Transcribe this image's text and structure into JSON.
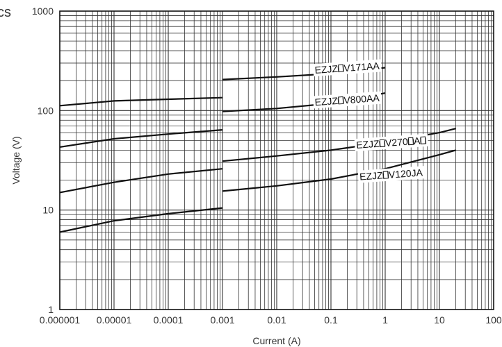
{
  "header": {
    "clipped_text": "cs"
  },
  "chart_data": {
    "type": "line",
    "title": "",
    "xlabel": "Current (A)",
    "ylabel": "Voltage (V)",
    "xscale": "log",
    "yscale": "log",
    "xlim": [
      1e-06,
      100
    ],
    "ylim": [
      1,
      1000
    ],
    "grid": true,
    "x_ticks": [
      "0.000001",
      "0.00001",
      "0.0001",
      "0.001",
      "0.01",
      "0.1",
      "1",
      "10",
      "100"
    ],
    "y_ticks": [
      "1",
      "10",
      "100",
      "1000"
    ],
    "series": [
      {
        "name": "EZJZ□V171AA",
        "label_boxes": [
          4
        ],
        "label_at": {
          "x": 0.2,
          "y": 248
        },
        "points": [
          [
            0.001,
            205
          ],
          [
            0.01,
            218
          ],
          [
            0.1,
            235
          ],
          [
            1,
            270
          ]
        ]
      },
      {
        "name": "EZJZ□V800AA",
        "label_boxes": [
          4
        ],
        "label_at": {
          "x": 0.2,
          "y": 118
        },
        "points": [
          [
            1e-06,
            112
          ],
          [
            1e-05,
            125
          ],
          [
            0.0001,
            130
          ],
          [
            0.001,
            135
          ],
          [
            0.001,
            98
          ],
          [
            0.01,
            105
          ],
          [
            0.1,
            118
          ],
          [
            1,
            150
          ]
        ]
      },
      {
        "name": "EZJZ□V270□A□",
        "label_boxes": [
          4,
          9,
          11
        ],
        "label_at": {
          "x": 1.3,
          "y": 44
        },
        "points": [
          [
            1e-06,
            43
          ],
          [
            1e-05,
            52
          ],
          [
            0.0001,
            58
          ],
          [
            0.001,
            64
          ],
          [
            0.001,
            31
          ],
          [
            0.01,
            35
          ],
          [
            0.1,
            40
          ],
          [
            1,
            48
          ],
          [
            10,
            60
          ],
          [
            20,
            66
          ]
        ]
      },
      {
        "name": "EZJZ□V120JA",
        "label_boxes": [
          4
        ],
        "label_at": {
          "x": 1.3,
          "y": 21
        },
        "points": [
          [
            1e-06,
            15
          ],
          [
            1e-05,
            19
          ],
          [
            0.0001,
            23
          ],
          [
            0.001,
            26
          ],
          [
            0.001,
            15.5
          ],
          [
            0.01,
            17.5
          ],
          [
            0.1,
            20.5
          ],
          [
            1,
            26
          ],
          [
            10,
            36
          ],
          [
            20,
            40
          ]
        ]
      },
      {
        "name": "",
        "label_boxes": [],
        "points": [
          [
            1e-06,
            6
          ],
          [
            1e-05,
            7.8
          ],
          [
            0.0001,
            9.2
          ],
          [
            0.001,
            10.5
          ]
        ]
      }
    ]
  }
}
